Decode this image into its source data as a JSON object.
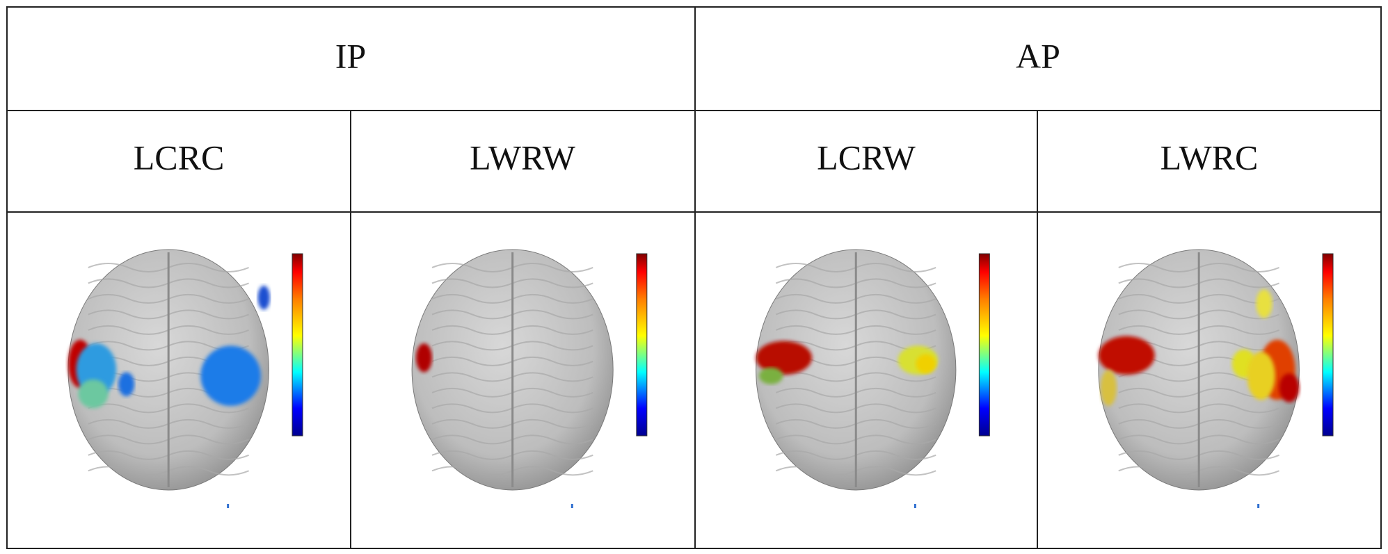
{
  "table": {
    "groups": [
      "IP",
      "AP"
    ],
    "columns": [
      "LCRC",
      "LWRW",
      "LCRW",
      "LWRC"
    ]
  }
}
